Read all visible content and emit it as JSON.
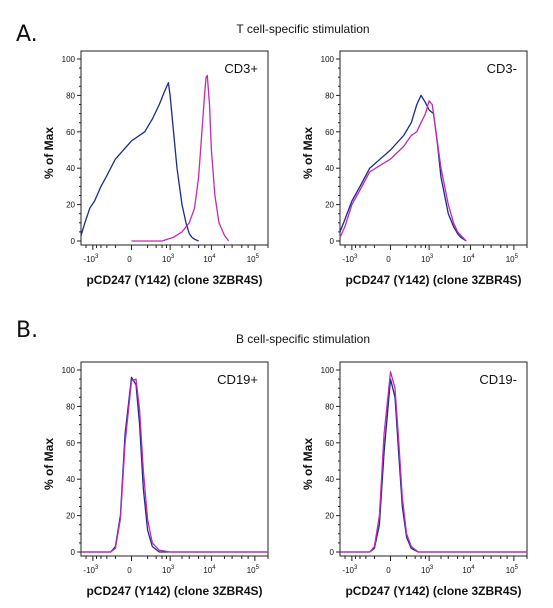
{
  "figure": {
    "sections": [
      {
        "letter": "A.",
        "title": "T cell-specific stimulation"
      },
      {
        "letter": "B.",
        "title": "B cell-specific stimulation"
      }
    ]
  },
  "colors": {
    "series_1": "#1a2a8c",
    "series_2": "#c22ab4",
    "axis": "#222222"
  },
  "chart_data": [
    {
      "type": "line",
      "label": "CD3+",
      "xlabel": "pCD247 (Y142) (clone 3ZBR4S)",
      "ylabel": "% of Max",
      "xscale": "biexponential",
      "xlim": [
        -2000,
        200000
      ],
      "ylim": [
        0,
        100
      ],
      "yticks": [
        0,
        20,
        40,
        60,
        80,
        100
      ],
      "xticks": [
        {
          "base": "-10",
          "exp": "3",
          "value": -1000
        },
        {
          "base": "0",
          "exp": "",
          "value": 0
        },
        {
          "base": "10",
          "exp": "3",
          "value": 1000
        },
        {
          "base": "10",
          "exp": "4",
          "value": 10000
        },
        {
          "base": "10",
          "exp": "5",
          "value": 100000
        }
      ],
      "series": [
        {
          "x": [
            -2000,
            -1600,
            -1200,
            -900,
            -600,
            -400,
            -200,
            0,
            150,
            300,
            500,
            700,
            900,
            1000,
            1200,
            1500,
            2000,
            2500,
            3000,
            3500,
            4000,
            5000
          ],
          "y": [
            3,
            10,
            18,
            22,
            30,
            36,
            45,
            55,
            60,
            67,
            75,
            82,
            87,
            80,
            62,
            40,
            20,
            10,
            4,
            2,
            1,
            0
          ]
        },
        {
          "x": [
            0,
            600,
            1200,
            2000,
            3000,
            4000,
            5000,
            6000,
            7000,
            7500,
            8000,
            9000,
            10000,
            12000,
            15000,
            20000,
            25000
          ],
          "y": [
            0,
            0,
            2,
            5,
            10,
            18,
            35,
            60,
            82,
            90,
            91,
            75,
            50,
            25,
            10,
            3,
            0
          ]
        }
      ]
    },
    {
      "type": "line",
      "label": "CD3-",
      "xlabel": "pCD247 (Y142) (clone 3ZBR4S)",
      "ylabel": "% of Max",
      "xscale": "biexponential",
      "xlim": [
        -2000,
        200000
      ],
      "ylim": [
        0,
        100
      ],
      "yticks": [
        0,
        20,
        40,
        60,
        80,
        100
      ],
      "xticks": [
        {
          "base": "-10",
          "exp": "3",
          "value": -1000
        },
        {
          "base": "0",
          "exp": "",
          "value": 0
        },
        {
          "base": "10",
          "exp": "3",
          "value": 1000
        },
        {
          "base": "10",
          "exp": "4",
          "value": 10000
        },
        {
          "base": "10",
          "exp": "5",
          "value": 100000
        }
      ],
      "series": [
        {
          "x": [
            -2000,
            -1500,
            -1000,
            -600,
            -300,
            0,
            150,
            300,
            450,
            600,
            800,
            1000,
            1300,
            1600,
            2000,
            3000,
            4000,
            5000,
            6000,
            8000
          ],
          "y": [
            5,
            12,
            22,
            30,
            40,
            50,
            58,
            65,
            75,
            80,
            76,
            72,
            70,
            55,
            35,
            15,
            8,
            4,
            2,
            0
          ]
        },
        {
          "x": [
            -2000,
            -1500,
            -1000,
            -600,
            -300,
            0,
            150,
            300,
            450,
            600,
            800,
            1000,
            1200,
            1500,
            2000,
            3000,
            4000,
            5000,
            6000,
            8000
          ],
          "y": [
            2,
            8,
            20,
            28,
            38,
            45,
            52,
            58,
            60,
            65,
            70,
            77,
            75,
            60,
            40,
            20,
            10,
            5,
            3,
            0
          ]
        }
      ]
    },
    {
      "type": "line",
      "label": "CD19+",
      "xlabel": "pCD247 (Y142) (clone 3ZBR4S)",
      "ylabel": "% of Max",
      "xscale": "biexponential",
      "xlim": [
        -2000,
        200000
      ],
      "ylim": [
        0,
        100
      ],
      "yticks": [
        0,
        20,
        40,
        60,
        80,
        100
      ],
      "xticks": [
        {
          "base": "-10",
          "exp": "3",
          "value": -1000
        },
        {
          "base": "0",
          "exp": "",
          "value": 0
        },
        {
          "base": "10",
          "exp": "3",
          "value": 1000
        },
        {
          "base": "10",
          "exp": "4",
          "value": 10000
        },
        {
          "base": "10",
          "exp": "5",
          "value": 100000
        }
      ],
      "series": [
        {
          "x": [
            -2000,
            -600,
            -300,
            -200,
            -120,
            -60,
            0,
            40,
            80,
            130,
            200,
            300,
            500,
            1000,
            5000,
            200000
          ],
          "y": [
            0,
            0,
            0,
            3,
            20,
            65,
            96,
            92,
            70,
            35,
            12,
            3,
            0,
            0,
            0,
            0
          ]
        },
        {
          "x": [
            -2000,
            -600,
            -300,
            -200,
            -120,
            -60,
            0,
            40,
            80,
            130,
            200,
            300,
            500,
            1000,
            5000,
            200000
          ],
          "y": [
            0,
            0,
            0,
            2,
            18,
            60,
            94,
            95,
            78,
            45,
            18,
            5,
            1,
            0,
            0,
            0
          ]
        }
      ]
    },
    {
      "type": "line",
      "label": "CD19-",
      "xlabel": "pCD247 (Y142) (clone 3ZBR4S)",
      "ylabel": "% of Max",
      "xscale": "biexponential",
      "xlim": [
        -2000,
        200000
      ],
      "ylim": [
        0,
        100
      ],
      "yticks": [
        0,
        20,
        40,
        60,
        80,
        100
      ],
      "xticks": [
        {
          "base": "-10",
          "exp": "3",
          "value": -1000
        },
        {
          "base": "0",
          "exp": "",
          "value": 0
        },
        {
          "base": "10",
          "exp": "3",
          "value": 1000
        },
        {
          "base": "10",
          "exp": "4",
          "value": 10000
        },
        {
          "base": "10",
          "exp": "5",
          "value": 100000
        }
      ],
      "series": [
        {
          "x": [
            -2000,
            -600,
            -300,
            -200,
            -120,
            -60,
            0,
            40,
            80,
            130,
            200,
            300,
            500,
            1000,
            5000,
            200000
          ],
          "y": [
            0,
            0,
            0,
            2,
            15,
            55,
            95,
            85,
            55,
            25,
            8,
            2,
            0,
            0,
            0,
            0
          ]
        },
        {
          "x": [
            -2000,
            -600,
            -300,
            -200,
            -120,
            -60,
            0,
            40,
            80,
            130,
            200,
            300,
            500,
            1000,
            5000,
            200000
          ],
          "y": [
            0,
            0,
            0,
            3,
            20,
            65,
            99,
            90,
            62,
            30,
            10,
            3,
            0,
            0,
            0,
            0
          ]
        }
      ]
    }
  ]
}
